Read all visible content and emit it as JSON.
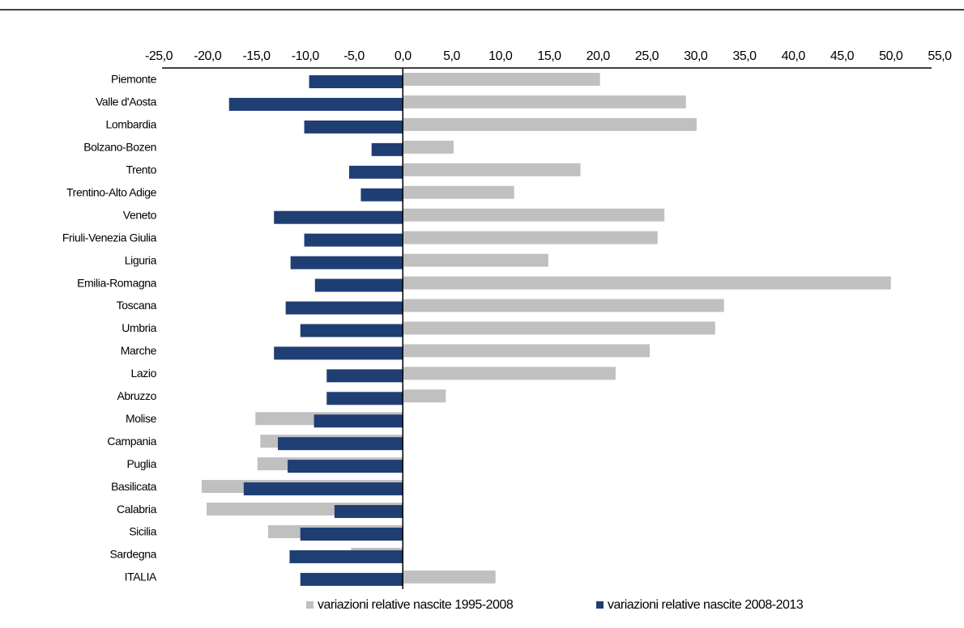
{
  "chart_data": {
    "type": "bar",
    "orientation": "horizontal",
    "categories": [
      "Piemonte",
      "Valle d'Aosta",
      "Lombardia",
      "Bolzano-Bozen",
      "Trento",
      "Trentino-Alto Adige",
      "Veneto",
      "Friuli-Venezia Giulia",
      "Liguria",
      "Emilia-Romagna",
      "Toscana",
      "Umbria",
      "Marche",
      "Lazio",
      "Abruzzo",
      "Molise",
      "Campania",
      "Puglia",
      "Basilicata",
      "Calabria",
      "Sicilia",
      "Sardegna",
      "ITALIA"
    ],
    "series": [
      {
        "name": "variazioni relative nascite 1995-2008",
        "color": "#c0c0c0",
        "values": [
          20.2,
          29.0,
          30.1,
          5.2,
          18.2,
          11.4,
          26.8,
          26.1,
          14.9,
          50.0,
          32.9,
          32.0,
          25.3,
          21.8,
          4.4,
          -15.1,
          -14.6,
          -14.9,
          -20.6,
          -20.1,
          -13.8,
          -5.3,
          9.5
        ]
      },
      {
        "name": "variazioni relative nascite 2008-2013",
        "color": "#1f3e73",
        "values": [
          -9.6,
          -17.8,
          -10.1,
          -3.2,
          -5.5,
          -4.3,
          -13.2,
          -10.1,
          -11.5,
          -9.0,
          -12.0,
          -10.5,
          -13.2,
          -7.8,
          -7.8,
          -9.1,
          -12.8,
          -11.8,
          -16.3,
          -7.0,
          -10.5,
          -11.6,
          -10.5
        ]
      }
    ],
    "xlim": [
      -25,
      55
    ],
    "xticks": [
      {
        "value": -25,
        "label": "-25,0"
      },
      {
        "value": -20,
        "label": "-20,0"
      },
      {
        "value": -15,
        "label": "-15,0"
      },
      {
        "value": -10,
        "label": "-10,0"
      },
      {
        "value": -5,
        "label": "-5,0"
      },
      {
        "value": 0,
        "label": "0,0"
      },
      {
        "value": 5,
        "label": "5,0"
      },
      {
        "value": 10,
        "label": "10,0"
      },
      {
        "value": 15,
        "label": "15,0"
      },
      {
        "value": 20,
        "label": "20,0"
      },
      {
        "value": 25,
        "label": "25,0"
      },
      {
        "value": 30,
        "label": "30,0"
      },
      {
        "value": 35,
        "label": "35,0"
      },
      {
        "value": 40,
        "label": "40,0"
      },
      {
        "value": 45,
        "label": "45,0"
      },
      {
        "value": 50,
        "label": "50,0"
      },
      {
        "value": 55,
        "label": "55,0"
      }
    ],
    "legend": "bottom"
  }
}
